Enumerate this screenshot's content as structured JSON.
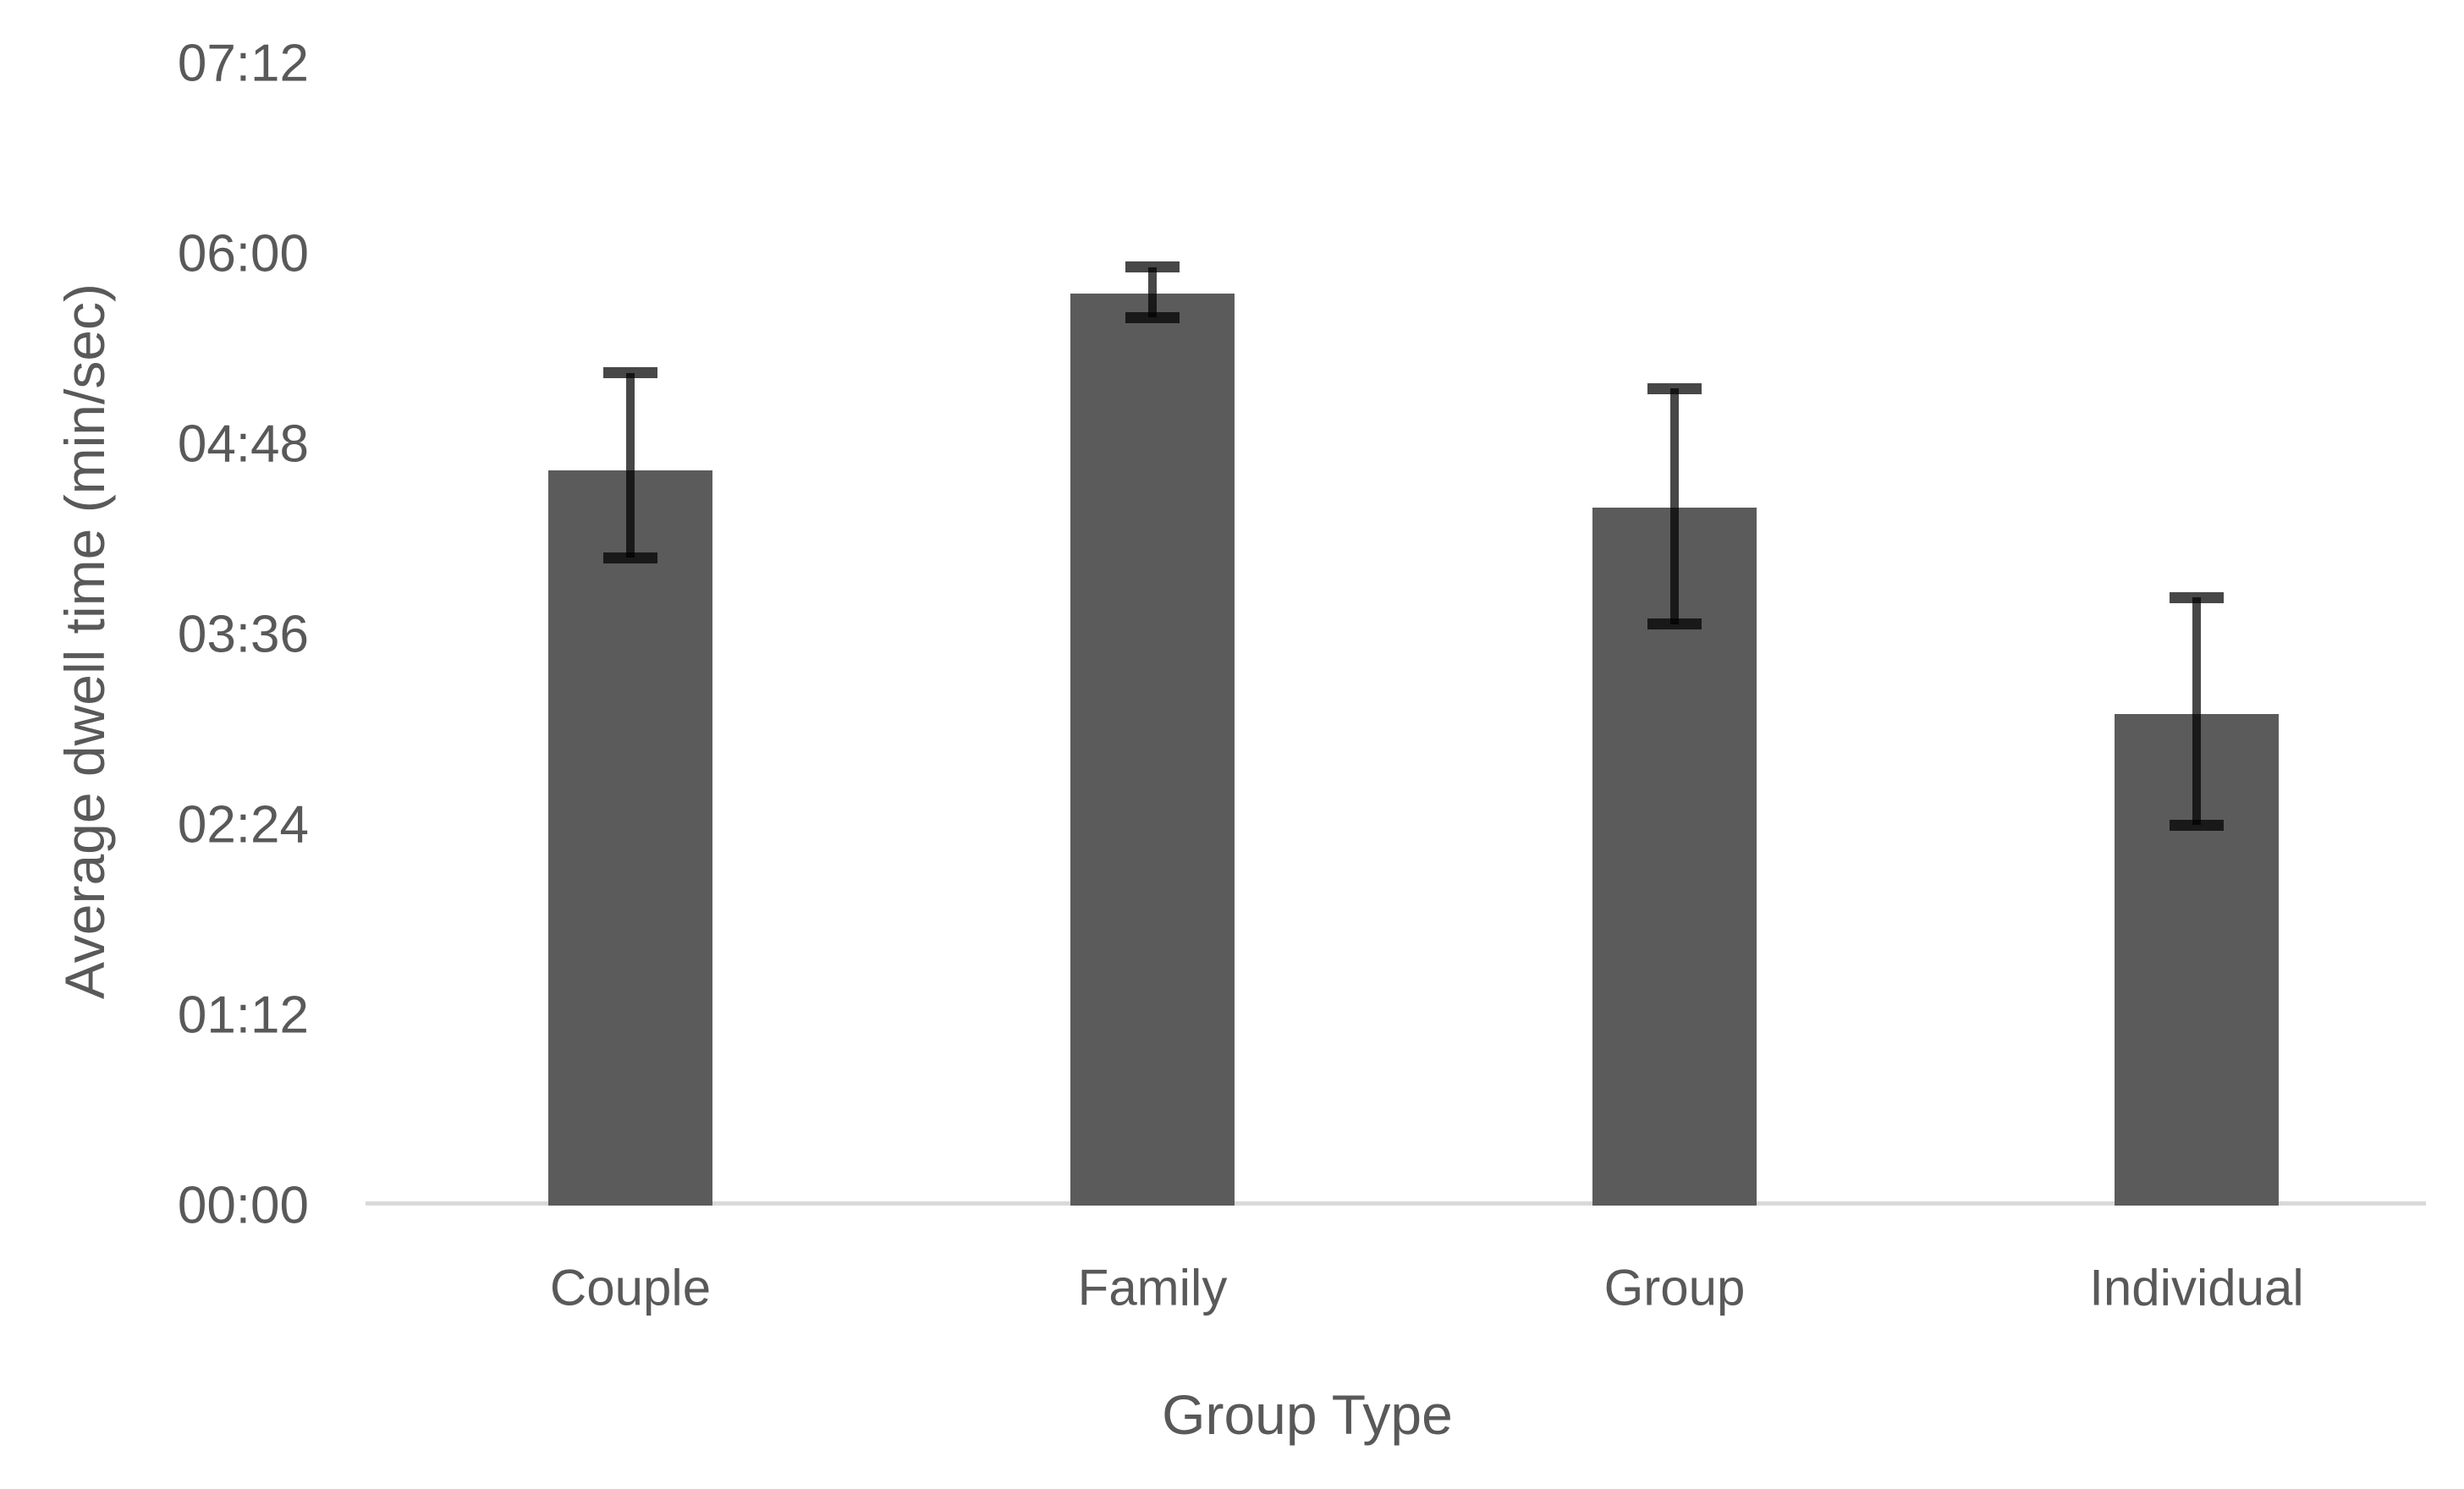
{
  "chart_data": {
    "type": "bar",
    "title": "",
    "xlabel": "Group Type",
    "ylabel": "Average dwell time (min/sec)",
    "categories": [
      "Couple",
      "Family",
      "Group",
      "Individual"
    ],
    "values_display": [
      "4:38",
      "5:45",
      "4:24",
      "3:06"
    ],
    "values_seconds": [
      278,
      345,
      264,
      186
    ],
    "error_high_seconds": [
      315,
      355,
      309,
      230
    ],
    "error_low_seconds": [
      245,
      336,
      220,
      144
    ],
    "y_ticks": [
      "00:00",
      "01:12",
      "02:24",
      "03:36",
      "04:48",
      "06:00",
      "07:12"
    ],
    "y_tick_seconds": [
      0,
      72,
      144,
      216,
      288,
      360,
      432
    ],
    "ylim": [
      0,
      432
    ],
    "y_major_unit_seconds": 72,
    "grid": false,
    "legend": false,
    "bar_color": "#5b5b5b",
    "error_bar_color": "rgba(0,0,0,0.72)",
    "axis_line_color": "#d9d9d9",
    "text_color": "#595959",
    "background_color": "#ffffff"
  }
}
